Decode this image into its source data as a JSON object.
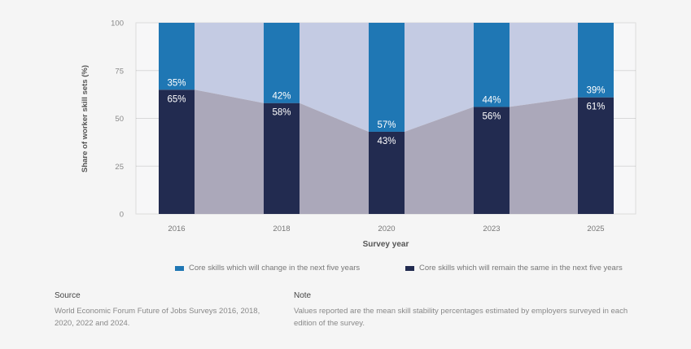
{
  "chart_data": {
    "type": "bar",
    "stacked": true,
    "categories": [
      "2016",
      "2018",
      "2020",
      "2023",
      "2025"
    ],
    "series": [
      {
        "name": "Core skills which will remain the same in the next five years",
        "values": [
          65,
          58,
          43,
          56,
          61
        ],
        "color": "#222b50",
        "labels": [
          "65%",
          "58%",
          "43%",
          "56%",
          "61%"
        ]
      },
      {
        "name": "Core skills which will change in the next five years",
        "values": [
          35,
          42,
          57,
          44,
          39
        ],
        "color": "#1f77b4",
        "labels": [
          "35%",
          "42%",
          "57%",
          "44%",
          "39%"
        ]
      }
    ],
    "area_colors": {
      "bottom": "#aba8ba",
      "top": "#c4cbe3"
    },
    "xlabel": "Survey year",
    "ylabel": "Share of worker skill sets (%)",
    "ylim": [
      0,
      100
    ],
    "yticks": [
      "0",
      "25",
      "50",
      "75",
      "100"
    ],
    "grid": true,
    "legend_position": "bottom"
  },
  "legend": {
    "change": "Core skills which will change in the next five years",
    "same": "Core skills which will remain the same in the next five years"
  },
  "footer": {
    "source_title": "Source",
    "source_text": "World Economic Forum Future of Jobs Surveys 2016, 2018, 2020, 2022 and 2024.",
    "note_title": "Note",
    "note_text": "Values reported are the mean skill stability percentages estimated by employers surveyed in each edition of the survey."
  }
}
